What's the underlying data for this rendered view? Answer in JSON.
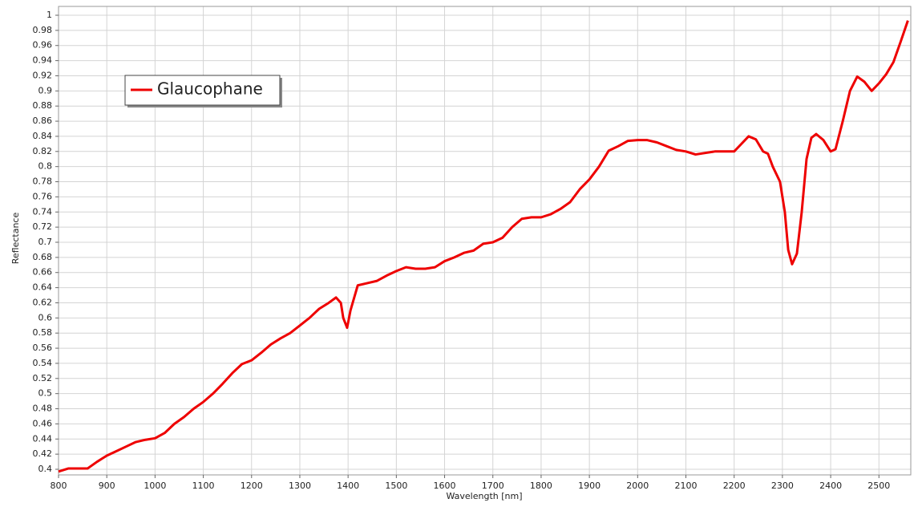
{
  "chart_data": {
    "type": "line",
    "xlabel": "Wavelength [nm]",
    "ylabel": "Reflectance",
    "xlim": [
      800,
      2566
    ],
    "ylim": [
      0.4,
      1
    ],
    "xticks": [
      800,
      900,
      1000,
      1100,
      1200,
      1300,
      1400,
      1500,
      1600,
      1700,
      1800,
      1900,
      2000,
      2100,
      2200,
      2300,
      2400,
      2500
    ],
    "yticks": [
      0.4,
      0.42,
      0.44,
      0.46,
      0.48,
      0.5,
      0.52,
      0.54,
      0.56,
      0.58,
      0.6,
      0.62,
      0.64,
      0.66,
      0.68,
      0.7,
      0.72,
      0.74,
      0.76,
      0.78,
      0.8,
      0.82,
      0.84,
      0.86,
      0.88,
      0.9,
      0.92,
      0.94,
      0.96,
      0.98,
      1
    ],
    "grid": true,
    "x": [
      800,
      820,
      840,
      860,
      880,
      900,
      920,
      940,
      960,
      980,
      1000,
      1020,
      1040,
      1060,
      1080,
      1100,
      1120,
      1140,
      1160,
      1180,
      1200,
      1220,
      1240,
      1260,
      1280,
      1300,
      1320,
      1340,
      1360,
      1375,
      1385,
      1390,
      1398,
      1405,
      1420,
      1440,
      1460,
      1480,
      1500,
      1520,
      1540,
      1560,
      1580,
      1600,
      1620,
      1640,
      1660,
      1680,
      1700,
      1720,
      1740,
      1760,
      1780,
      1800,
      1820,
      1840,
      1860,
      1880,
      1900,
      1920,
      1940,
      1960,
      1980,
      2000,
      2020,
      2040,
      2060,
      2080,
      2100,
      2120,
      2140,
      2160,
      2180,
      2200,
      2215,
      2230,
      2245,
      2260,
      2270,
      2280,
      2295,
      2305,
      2312,
      2320,
      2330,
      2340,
      2350,
      2360,
      2370,
      2385,
      2400,
      2410,
      2425,
      2440,
      2455,
      2470,
      2485,
      2500,
      2515,
      2530,
      2545,
      2560
    ],
    "series": [
      {
        "name": "Glaucophane",
        "color": "#ee0000",
        "values": [
          0.397,
          0.401,
          0.401,
          0.401,
          0.41,
          0.418,
          0.424,
          0.43,
          0.436,
          0.439,
          0.441,
          0.448,
          0.46,
          0.469,
          0.48,
          0.489,
          0.5,
          0.513,
          0.527,
          0.539,
          0.544,
          0.554,
          0.565,
          0.573,
          0.58,
          0.59,
          0.6,
          0.612,
          0.62,
          0.627,
          0.62,
          0.6,
          0.587,
          0.61,
          0.643,
          0.646,
          0.649,
          0.656,
          0.662,
          0.667,
          0.665,
          0.665,
          0.667,
          0.675,
          0.68,
          0.686,
          0.689,
          0.698,
          0.7,
          0.706,
          0.72,
          0.731,
          0.733,
          0.733,
          0.737,
          0.744,
          0.753,
          0.77,
          0.783,
          0.8,
          0.821,
          0.827,
          0.834,
          0.835,
          0.835,
          0.832,
          0.827,
          0.822,
          0.82,
          0.816,
          0.818,
          0.82,
          0.82,
          0.82,
          0.83,
          0.84,
          0.836,
          0.82,
          0.817,
          0.8,
          0.78,
          0.74,
          0.69,
          0.671,
          0.685,
          0.74,
          0.81,
          0.838,
          0.843,
          0.835,
          0.82,
          0.823,
          0.86,
          0.9,
          0.919,
          0.912,
          0.9,
          0.91,
          0.922,
          0.938,
          0.965,
          0.993
        ]
      }
    ]
  }
}
